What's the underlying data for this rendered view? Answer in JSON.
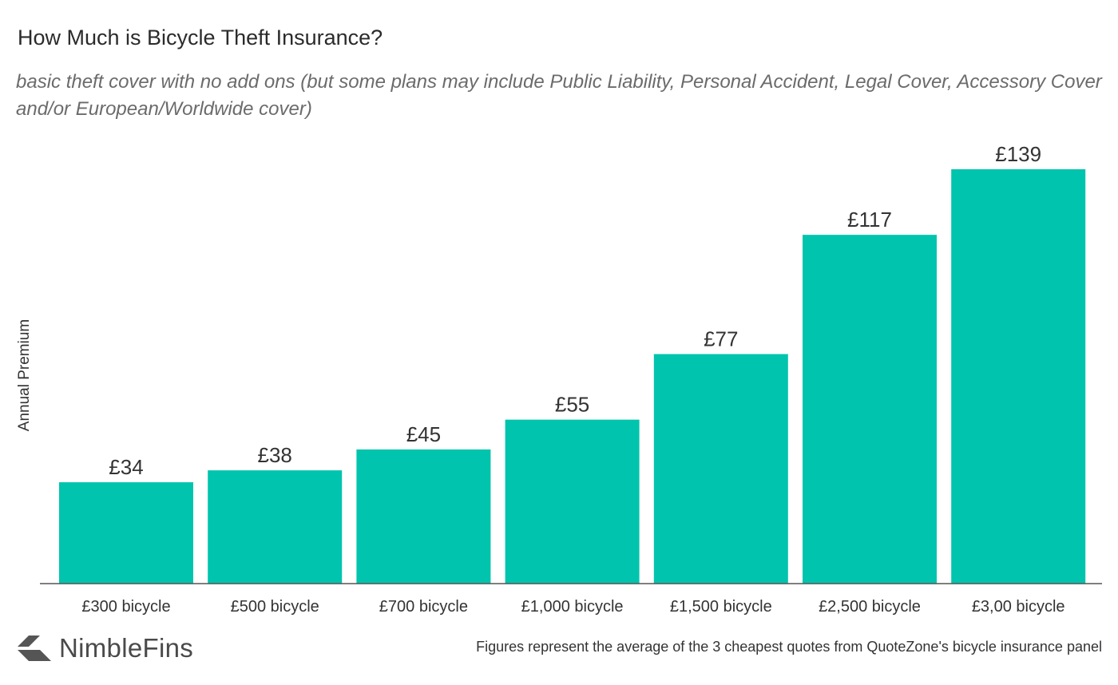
{
  "chart_data": {
    "type": "bar",
    "title": "How Much is Bicycle Theft Insurance?",
    "subtitle": "basic theft cover with no add ons (but some plans may include Public Liability, Personal Accident, Legal Cover, Accessory Cover and/or European/Worldwide cover)",
    "xlabel": "",
    "ylabel": "Annual Premium",
    "categories": [
      "£300 bicycle",
      "£500 bicycle",
      "£700 bicycle",
      "£1,000 bicycle",
      "£1,500 bicycle",
      "£2,500 bicycle",
      "£3,00 bicycle"
    ],
    "values": [
      34,
      38,
      45,
      55,
      77,
      117,
      139
    ],
    "data_labels": [
      "£34",
      "£38",
      "£45",
      "£55",
      "£77",
      "£117",
      "£139"
    ],
    "ylim": [
      0,
      139
    ],
    "grid": false,
    "legend": "none",
    "bar_color": "#00c4ad"
  },
  "brand": {
    "name": "NimbleFins",
    "icon": "nimblefins-logo-chevron",
    "icon_color": "#555555"
  },
  "footnote": "Figures represent the average of the 3 cheapest quotes from QuoteZone's bicycle insurance panel"
}
